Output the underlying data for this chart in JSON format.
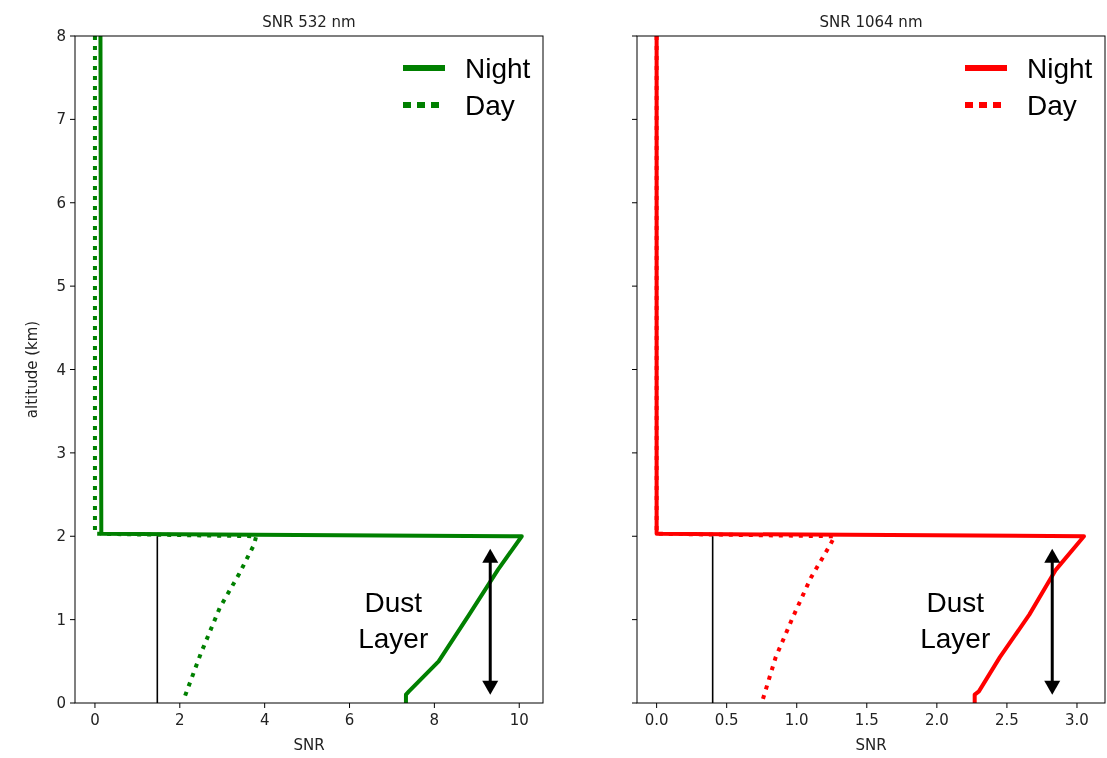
{
  "chart_data": [
    {
      "type": "line",
      "title": "SNR 532 nm",
      "xlabel": "SNR",
      "ylabel": "altitude (km)",
      "xlim": [
        -0.47,
        10.56
      ],
      "ylim": [
        0,
        8
      ],
      "xticks": [
        0,
        2,
        4,
        6,
        8,
        10
      ],
      "yticks": [
        0,
        1,
        2,
        3,
        4,
        5,
        6,
        7,
        8
      ],
      "legend": "top right",
      "annotations": [
        "Dust\nLayer"
      ],
      "series": [
        {
          "name": "Night",
          "color": "#008000",
          "line_style": "solid",
          "x": [
            0.13,
            0.15,
            10.06,
            9.5,
            8.82,
            8.1,
            7.4,
            7.33,
            7.33
          ],
          "values": [
            8,
            2.03,
            2.0,
            1.6,
            1.06,
            0.5,
            0.14,
            0.1,
            0
          ]
        },
        {
          "name": "Day",
          "color": "#008000",
          "line_style": "dotted",
          "x": [
            0.0,
            0.0,
            3.8,
            3.75,
            3.4,
            2.94,
            2.5,
            2.12
          ],
          "values": [
            8,
            2.03,
            2.0,
            1.9,
            1.55,
            1.14,
            0.6,
            0.08
          ]
        },
        {
          "color": "#000000",
          "line_style": "solid",
          "x": [
            1.47,
            1.47
          ],
          "values": [
            0,
            2.0
          ]
        }
      ]
    },
    {
      "type": "line",
      "title": "SNR 1064 nm",
      "xlabel": "SNR",
      "xlim": [
        -0.14,
        3.2
      ],
      "ylim": [
        0,
        8
      ],
      "xticks": [
        {
          "value": 0,
          "label": "0.0"
        },
        0.5,
        {
          "value": 1,
          "label": "1.0"
        },
        1.5,
        {
          "value": 2,
          "label": "2.0"
        },
        2.5,
        {
          "value": 3,
          "label": "3.0"
        }
      ],
      "yticks": [
        {
          "value": 0,
          "label": null
        },
        {
          "value": 1,
          "label": null
        },
        {
          "value": 2,
          "label": null
        },
        {
          "value": 3,
          "label": null
        },
        {
          "value": 4,
          "label": null
        },
        {
          "value": 5,
          "label": null
        },
        {
          "value": 6,
          "label": null
        },
        {
          "value": 7,
          "label": null
        },
        {
          "value": 8,
          "label": null
        }
      ],
      "tick_labels": "x",
      "legend": "top right",
      "annotations": [
        "Dust\nLayer"
      ],
      "series": [
        {
          "name": "Night",
          "color": "#ff0000",
          "line_style": "solid",
          "x": [
            0.0,
            0.0,
            3.05,
            2.85,
            2.66,
            2.45,
            2.3,
            2.27,
            2.27
          ],
          "values": [
            8,
            2.03,
            2.0,
            1.6,
            1.06,
            0.55,
            0.14,
            0.1,
            0
          ]
        },
        {
          "name": "Day",
          "color": "#ff0000",
          "line_style": "dotted",
          "x": [
            0.0,
            0.0,
            1.27,
            1.24,
            1.1,
            0.97,
            0.85,
            0.75
          ],
          "values": [
            8,
            2.03,
            2.0,
            1.9,
            1.5,
            1.02,
            0.55,
            0
          ]
        },
        {
          "color": "#000000",
          "line_style": "solid",
          "x": [
            0.4,
            0.4
          ],
          "values": [
            0,
            2.0
          ]
        }
      ]
    }
  ]
}
